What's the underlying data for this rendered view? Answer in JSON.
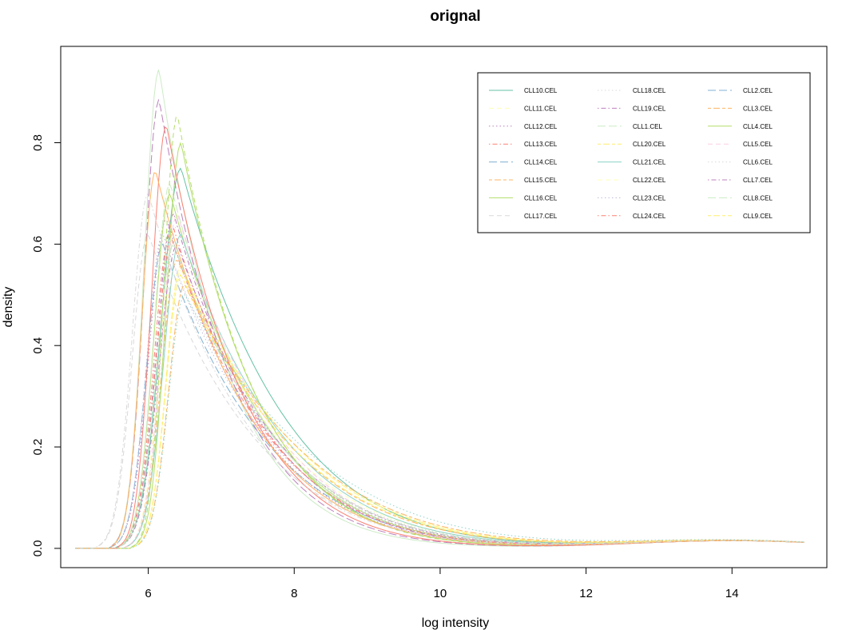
{
  "chart_data": {
    "type": "line",
    "title": "orignal",
    "xlabel": "log intensity",
    "ylabel": "density",
    "xlim": [
      4.8,
      15.3
    ],
    "ylim": [
      -0.038,
      0.99
    ],
    "xticks": [
      6,
      8,
      10,
      12,
      14
    ],
    "yticks": [
      0.0,
      0.2,
      0.4,
      0.6,
      0.8
    ],
    "xtick_labels": [
      "6",
      "8",
      "10",
      "12",
      "14"
    ],
    "ytick_labels": [
      "0.0",
      "0.2",
      "0.4",
      "0.6",
      "0.8"
    ],
    "grid": false,
    "legend_position": "top-right",
    "legend_columns": 3,
    "series": [
      {
        "name": "CLL10.CEL",
        "color": "#66c2a5",
        "dash": "solid",
        "peak_x": 6.45,
        "peak_y": 0.75,
        "x0": 5.6,
        "tail_y8": 0.25
      },
      {
        "name": "CLL11.CEL",
        "color": "#ffffb3",
        "dash": "dashed",
        "peak_x": 6.35,
        "peak_y": 0.6,
        "x0": 5.7,
        "tail_y8": 0.2
      },
      {
        "name": "CLL12.CEL",
        "color": "#bc80bd",
        "dash": "dotted",
        "peak_x": 6.25,
        "peak_y": 0.65,
        "x0": 5.5,
        "tail_y8": 0.17
      },
      {
        "name": "CLL13.CEL",
        "color": "#fb8072",
        "dash": "dotdash",
        "peak_x": 6.3,
        "peak_y": 0.62,
        "x0": 5.6,
        "tail_y8": 0.18
      },
      {
        "name": "CLL14.CEL",
        "color": "#80b1d3",
        "dash": "longdash",
        "peak_x": 6.2,
        "peak_y": 0.6,
        "x0": 5.5,
        "tail_y8": 0.17
      },
      {
        "name": "CLL15.CEL",
        "color": "#fdb462",
        "dash": "twodash",
        "peak_x": 6.4,
        "peak_y": 0.57,
        "x0": 5.7,
        "tail_y8": 0.21
      },
      {
        "name": "CLL16.CEL",
        "color": "#b3de69",
        "dash": "solid",
        "peak_x": 6.3,
        "peak_y": 0.7,
        "x0": 5.6,
        "tail_y8": 0.19
      },
      {
        "name": "CLL17.CEL",
        "color": "#d9d9d9",
        "dash": "dashed",
        "peak_x": 6.0,
        "peak_y": 0.62,
        "x0": 5.3,
        "tail_y8": 0.16
      },
      {
        "name": "CLL18.CEL",
        "color": "#d9d9d9",
        "dash": "dotted",
        "peak_x": 6.4,
        "peak_y": 0.64,
        "x0": 5.7,
        "tail_y8": 0.19
      },
      {
        "name": "CLL19.CEL",
        "color": "#bc80bd",
        "dash": "dotdash",
        "peak_x": 6.35,
        "peak_y": 0.66,
        "x0": 5.6,
        "tail_y8": 0.18
      },
      {
        "name": "CLL1.CEL",
        "color": "#ccebc5",
        "dash": "longdash",
        "peak_x": 6.3,
        "peak_y": 0.72,
        "x0": 5.6,
        "tail_y8": 0.19
      },
      {
        "name": "CLL20.CEL",
        "color": "#ffed6f",
        "dash": "twodash",
        "peak_x": 6.45,
        "peak_y": 0.56,
        "x0": 5.8,
        "tail_y8": 0.22
      },
      {
        "name": "CLL21.CEL",
        "color": "#8dd3c7",
        "dash": "solid",
        "peak_x": 6.45,
        "peak_y": 0.62,
        "x0": 5.7,
        "tail_y8": 0.21
      },
      {
        "name": "CLL22.CEL",
        "color": "#ffffb3",
        "dash": "dashed",
        "peak_x": 6.45,
        "peak_y": 0.55,
        "x0": 5.8,
        "tail_y8": 0.22
      },
      {
        "name": "CLL23.CEL",
        "color": "#bebada",
        "dash": "dotted",
        "peak_x": 6.2,
        "peak_y": 0.62,
        "x0": 5.5,
        "tail_y8": 0.18
      },
      {
        "name": "CLL24.CEL",
        "color": "#fb8072",
        "dash": "dotdash",
        "peak_x": 6.35,
        "peak_y": 0.63,
        "x0": 5.6,
        "tail_y8": 0.18
      },
      {
        "name": "CLL2.CEL",
        "color": "#80b1d3",
        "dash": "longdash",
        "peak_x": 6.35,
        "peak_y": 0.6,
        "x0": 5.6,
        "tail_y8": 0.19
      },
      {
        "name": "CLL3.CEL",
        "color": "#fdb462",
        "dash": "twodash",
        "peak_x": 6.5,
        "peak_y": 0.52,
        "x0": 5.8,
        "tail_y8": 0.22
      },
      {
        "name": "CLL4.CEL",
        "color": "#b3de69",
        "dash": "solid",
        "peak_x": 6.45,
        "peak_y": 0.8,
        "x0": 5.8,
        "tail_y8": 0.19
      },
      {
        "name": "CLL5.CEL",
        "color": "#fccde5",
        "dash": "dashed",
        "peak_x": 6.4,
        "peak_y": 0.66,
        "x0": 5.7,
        "tail_y8": 0.2
      },
      {
        "name": "CLL6.CEL",
        "color": "#d9d9d9",
        "dash": "dotted",
        "peak_x": 6.3,
        "peak_y": 0.58,
        "x0": 5.6,
        "tail_y8": 0.19
      },
      {
        "name": "CLL7.CEL",
        "color": "#bc80bd",
        "dash": "dotdash",
        "peak_x": 6.4,
        "peak_y": 0.6,
        "x0": 5.6,
        "tail_y8": 0.19
      },
      {
        "name": "CLL8.CEL",
        "color": "#ccebc5",
        "dash": "longdash",
        "peak_x": 6.35,
        "peak_y": 0.6,
        "x0": 5.6,
        "tail_y8": 0.19
      },
      {
        "name": "CLL9.CEL",
        "color": "#ffed6f",
        "dash": "twodash",
        "peak_x": 6.45,
        "peak_y": 0.54,
        "x0": 5.8,
        "tail_y8": 0.21
      },
      {
        "name": "",
        "color": "#ccebc5",
        "dash": "solid",
        "peak_x": 6.15,
        "peak_y": 0.945,
        "x0": 5.5,
        "tail_y8": 0.14
      },
      {
        "name": "",
        "color": "#bc80bd",
        "dash": "longdash",
        "peak_x": 6.15,
        "peak_y": 0.885,
        "x0": 5.5,
        "tail_y8": 0.15
      },
      {
        "name": "",
        "color": "#b3de69",
        "dash": "dashed",
        "peak_x": 6.4,
        "peak_y": 0.855,
        "x0": 5.8,
        "tail_y8": 0.19
      },
      {
        "name": "",
        "color": "#fb8072",
        "dash": "solid",
        "peak_x": 6.25,
        "peak_y": 0.835,
        "x0": 5.6,
        "tail_y8": 0.16
      },
      {
        "name": "",
        "color": "#fdb462",
        "dash": "solid",
        "peak_x": 6.1,
        "peak_y": 0.745,
        "x0": 5.5,
        "tail_y8": 0.17
      },
      {
        "name": "",
        "color": "#d9d9d9",
        "dash": "dotdash",
        "peak_x": 6.0,
        "peak_y": 0.7,
        "x0": 5.3,
        "tail_y8": 0.16
      },
      {
        "name": "",
        "color": "#8dd3c7",
        "dash": "dotted",
        "peak_x": 6.5,
        "peak_y": 0.5,
        "x0": 5.8,
        "tail_y8": 0.23
      }
    ]
  }
}
